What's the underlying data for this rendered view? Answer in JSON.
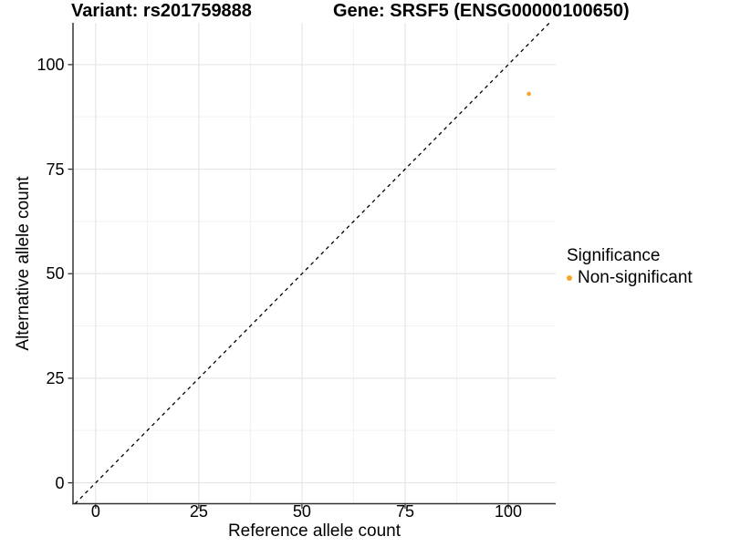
{
  "chart_data": {
    "type": "scatter",
    "titles": {
      "left": "Variant: rs201759888",
      "right": "Gene: SRSF5 (ENSG00000100650)"
    },
    "xlabel": "Reference allele count",
    "ylabel": "Alternative allele count",
    "xlim": [
      -5.5,
      111.5
    ],
    "ylim": [
      -5,
      110
    ],
    "x_ticks": [
      0,
      25,
      50,
      75,
      100
    ],
    "y_ticks": [
      0,
      25,
      50,
      75,
      100
    ],
    "x_minor_ticks": [
      12.5,
      37.5,
      62.5,
      87.5
    ],
    "y_minor_ticks": [
      12.5,
      37.5,
      62.5,
      87.5
    ],
    "grid": true,
    "identity_line": {
      "style": "dashed",
      "from": [
        -5,
        -5
      ],
      "to": [
        110,
        110
      ],
      "color": "#000000"
    },
    "series": [
      {
        "name": "Non-significant",
        "color": "#F9A32C",
        "points": [
          {
            "x": 105,
            "y": 93
          }
        ]
      }
    ],
    "legend": {
      "title": "Significance",
      "position": "right",
      "entries": [
        {
          "label": "Non-significant",
          "color": "#F9A32C"
        }
      ]
    }
  },
  "colors": {
    "background": "#ffffff",
    "text": "#000000",
    "grid_major": "#e3e3e3",
    "grid_minor": "#f0f0f0",
    "axis_line": "#333333",
    "tick_mark": "#333333"
  }
}
